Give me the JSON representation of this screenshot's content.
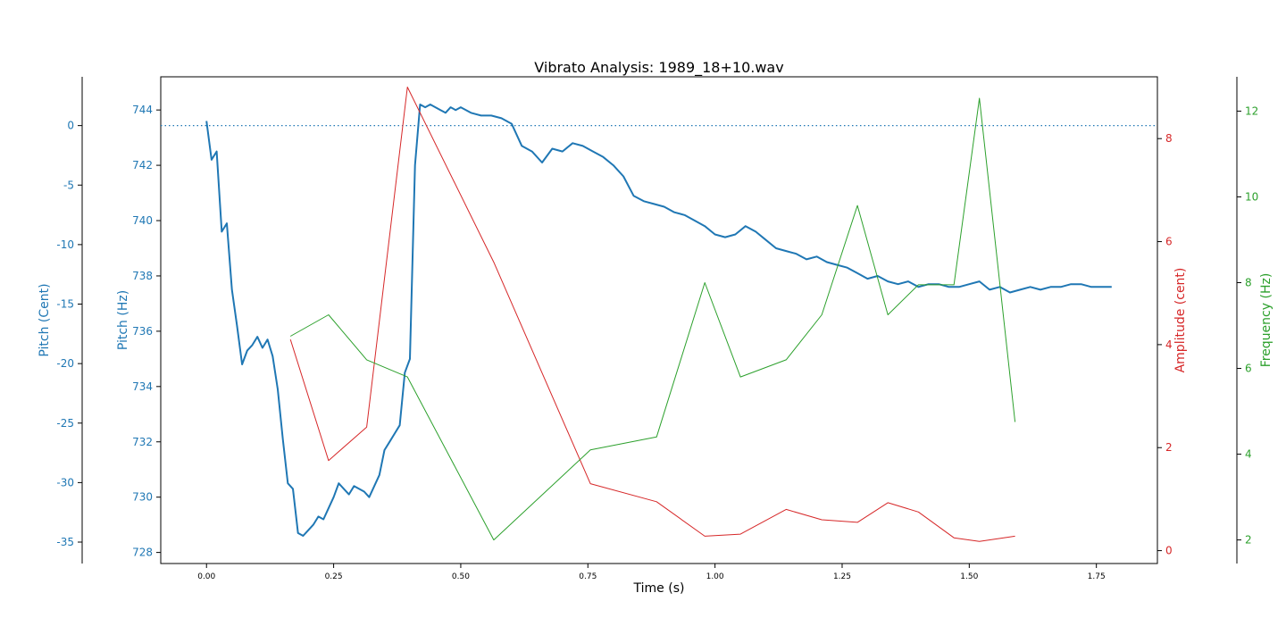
{
  "chart_data": {
    "type": "line",
    "title": "Vibrato Analysis: 1989_18+10.wav",
    "xlabel": "Time (s)",
    "xlim": [
      -0.09,
      1.87
    ],
    "x_ticks": [
      0.0,
      0.25,
      0.5,
      0.75,
      1.0,
      1.25,
      1.5,
      1.75
    ],
    "x_tick_labels": [
      "0.00",
      "0.25",
      "0.50",
      "0.75",
      "1.00",
      "1.25",
      "1.50",
      "1.75"
    ],
    "axes": {
      "pitch_hz": {
        "label": "Pitch (Hz)",
        "ylim": [
          727.6,
          745.2
        ],
        "ticks": [
          728,
          730,
          732,
          734,
          736,
          738,
          740,
          742,
          744
        ],
        "tick_labels": [
          "728",
          "730",
          "732",
          "734",
          "736",
          "738",
          "740",
          "742",
          "744"
        ],
        "color": "#1f77b4"
      },
      "pitch_cent": {
        "label": "Pitch (Cent)",
        "ylim": [
          -36.8,
          4.1
        ],
        "ticks": [
          0,
          -5,
          -10,
          -15,
          -20,
          -25,
          -30,
          -35
        ],
        "tick_labels": [
          "0",
          "-5",
          "-10",
          "-15",
          "-20",
          "-25",
          "-30",
          "-35"
        ],
        "color": "#1f77b4"
      },
      "amplitude": {
        "label": "Amplitude (cent)",
        "ylim": [
          -0.25,
          9.2
        ],
        "ticks": [
          0,
          2,
          4,
          6,
          8
        ],
        "tick_labels": [
          "0",
          "2",
          "4",
          "6",
          "8"
        ],
        "color": "#d62728"
      },
      "frequency": {
        "label": "Frequency (Hz)",
        "ylim": [
          1.45,
          12.8
        ],
        "ticks": [
          2,
          4,
          6,
          8,
          10,
          12
        ],
        "tick_labels": [
          "2",
          "4",
          "6",
          "8",
          "10",
          "12"
        ],
        "color": "#2ca02c"
      }
    },
    "reference_line": {
      "axis": "pitch_cent",
      "y": 0,
      "style": "dotted",
      "color": "#1f77b4"
    },
    "series": [
      {
        "axis": "pitch_hz",
        "color": "#1f77b4",
        "x": [
          0.0,
          0.01,
          0.02,
          0.03,
          0.04,
          0.05,
          0.06,
          0.07,
          0.08,
          0.09,
          0.1,
          0.11,
          0.12,
          0.13,
          0.14,
          0.15,
          0.16,
          0.17,
          0.18,
          0.19,
          0.2,
          0.21,
          0.22,
          0.23,
          0.24,
          0.25,
          0.26,
          0.27,
          0.28,
          0.29,
          0.3,
          0.31,
          0.32,
          0.33,
          0.34,
          0.35,
          0.36,
          0.37,
          0.38,
          0.39,
          0.4,
          0.41,
          0.42,
          0.43,
          0.44,
          0.45,
          0.46,
          0.47,
          0.48,
          0.49,
          0.5,
          0.52,
          0.54,
          0.56,
          0.58,
          0.6,
          0.62,
          0.64,
          0.66,
          0.68,
          0.7,
          0.72,
          0.74,
          0.76,
          0.78,
          0.8,
          0.82,
          0.84,
          0.86,
          0.88,
          0.9,
          0.92,
          0.94,
          0.96,
          0.98,
          1.0,
          1.02,
          1.04,
          1.06,
          1.08,
          1.1,
          1.12,
          1.14,
          1.16,
          1.18,
          1.2,
          1.22,
          1.24,
          1.26,
          1.28,
          1.3,
          1.32,
          1.34,
          1.36,
          1.38,
          1.4,
          1.42,
          1.44,
          1.46,
          1.48,
          1.5,
          1.52,
          1.54,
          1.56,
          1.58,
          1.6,
          1.62,
          1.64,
          1.66,
          1.68,
          1.7,
          1.72,
          1.74,
          1.76,
          1.78
        ],
        "values": [
          743.6,
          742.2,
          742.5,
          739.6,
          739.9,
          737.5,
          736.2,
          734.8,
          735.3,
          735.5,
          735.8,
          735.4,
          735.7,
          735.1,
          733.9,
          732.1,
          730.5,
          730.3,
          728.7,
          728.6,
          728.8,
          729.0,
          729.3,
          729.2,
          729.6,
          730.0,
          730.5,
          730.3,
          730.1,
          730.4,
          730.3,
          730.2,
          730.0,
          730.4,
          730.8,
          731.7,
          732.0,
          732.3,
          732.6,
          734.5,
          735.0,
          742.0,
          744.2,
          744.1,
          744.2,
          744.1,
          744.0,
          743.9,
          744.1,
          744.0,
          744.1,
          743.9,
          743.8,
          743.8,
          743.7,
          743.5,
          742.7,
          742.5,
          742.1,
          742.6,
          742.5,
          742.8,
          742.7,
          742.5,
          742.3,
          742.0,
          741.6,
          740.9,
          740.7,
          740.6,
          740.5,
          740.3,
          740.2,
          740.0,
          739.8,
          739.5,
          739.4,
          739.5,
          739.8,
          739.6,
          739.3,
          739.0,
          738.9,
          738.8,
          738.6,
          738.7,
          738.5,
          738.4,
          738.3,
          738.1,
          737.9,
          738.0,
          737.8,
          737.7,
          737.8,
          737.6,
          737.7,
          737.7,
          737.6,
          737.6,
          737.7,
          737.8,
          737.5,
          737.6,
          737.4,
          737.5,
          737.6,
          737.5,
          737.6,
          737.6,
          737.7,
          737.7,
          737.6,
          737.6,
          737.6
        ]
      },
      {
        "axis": "amplitude",
        "color": "#d62728",
        "x": [
          0.165,
          0.24,
          0.315,
          0.395,
          0.565,
          0.755,
          0.885,
          0.98,
          1.05,
          1.14,
          1.21,
          1.28,
          1.34,
          1.4,
          1.47,
          1.52,
          1.59
        ],
        "values": [
          4.1,
          1.75,
          2.4,
          9.0,
          5.6,
          1.3,
          0.95,
          0.28,
          0.32,
          0.8,
          0.6,
          0.55,
          0.93,
          0.75,
          0.25,
          0.18,
          0.28
        ]
      },
      {
        "axis": "frequency",
        "color": "#2ca02c",
        "x": [
          0.165,
          0.24,
          0.315,
          0.395,
          0.565,
          0.755,
          0.885,
          0.98,
          1.05,
          1.14,
          1.21,
          1.28,
          1.34,
          1.4,
          1.47,
          1.52,
          1.59
        ],
        "values": [
          6.75,
          7.25,
          6.2,
          5.8,
          2.0,
          4.1,
          4.4,
          8.0,
          5.8,
          6.2,
          7.25,
          9.8,
          7.25,
          7.95,
          7.95,
          12.3,
          4.75
        ]
      }
    ],
    "grid": false,
    "legend": "none"
  }
}
